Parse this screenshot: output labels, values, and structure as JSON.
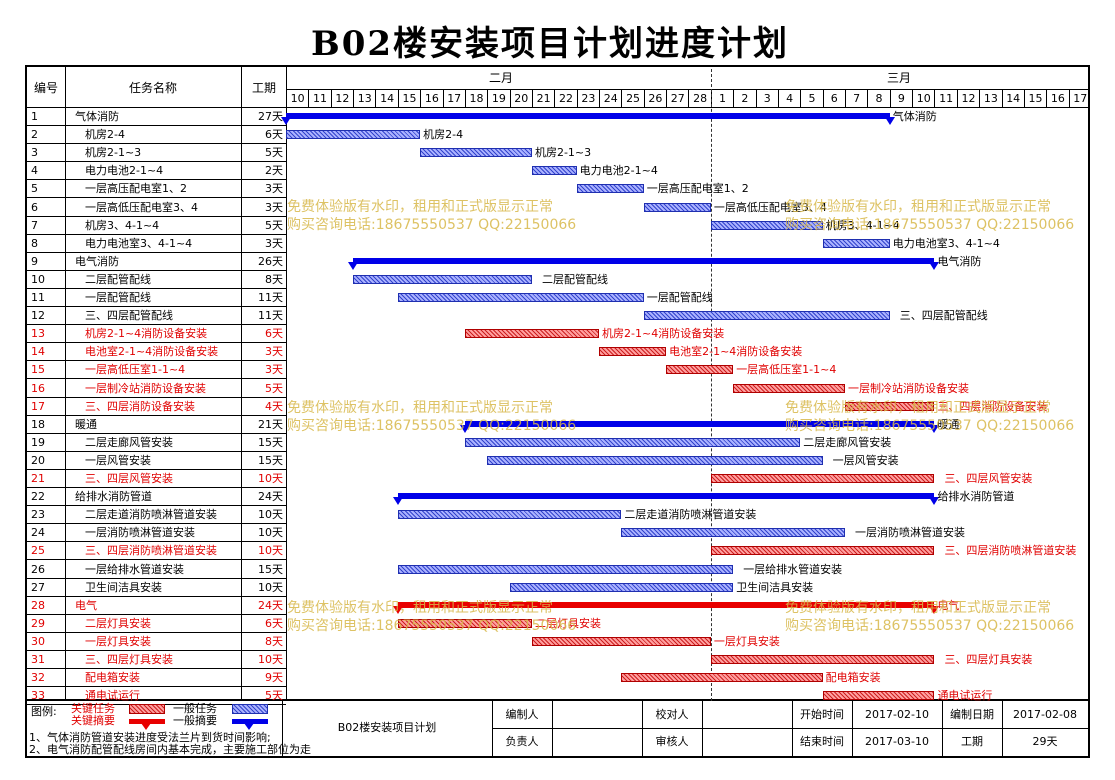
{
  "title": "B02楼安装项目计划进度计划",
  "header": {
    "id": "编号",
    "name": "任务名称",
    "duration": "工期",
    "month1": "二月",
    "month2": "三月"
  },
  "days": [
    "10",
    "11",
    "12",
    "13",
    "14",
    "15",
    "16",
    "17",
    "18",
    "19",
    "20",
    "21",
    "22",
    "23",
    "24",
    "25",
    "26",
    "27",
    "28",
    "1",
    "2",
    "3",
    "4",
    "5",
    "6",
    "7",
    "8",
    "9",
    "10",
    "11",
    "12",
    "13",
    "14",
    "15",
    "16",
    "17"
  ],
  "today_index": 19,
  "tasks": [
    {
      "id": "1",
      "name": "气体消防",
      "dur": "27天",
      "lvl": 0,
      "red": false,
      "kind": "sum",
      "s": 0,
      "d": 27,
      "label": "气体消防"
    },
    {
      "id": "2",
      "name": "机房2-4",
      "dur": "6天",
      "lvl": 1,
      "red": false,
      "kind": "bar",
      "s": 0,
      "d": 6,
      "label": "机房2-4"
    },
    {
      "id": "3",
      "name": "机房2-1~3",
      "dur": "5天",
      "lvl": 1,
      "red": false,
      "kind": "bar",
      "s": 6,
      "d": 5,
      "label": "机房2-1~3"
    },
    {
      "id": "4",
      "name": "电力电池2-1~4",
      "dur": "2天",
      "lvl": 1,
      "red": false,
      "kind": "bar",
      "s": 11,
      "d": 2,
      "label": "电力电池2-1~4"
    },
    {
      "id": "5",
      "name": "一层高压配电室1、2",
      "dur": "3天",
      "lvl": 1,
      "red": false,
      "kind": "bar",
      "s": 13,
      "d": 3,
      "label": "一层高压配电室1、2"
    },
    {
      "id": "6",
      "name": "一层高低压配电室3、4",
      "dur": "3天",
      "lvl": 1,
      "red": false,
      "kind": "bar",
      "s": 16,
      "d": 3,
      "label": "一层高低压配电室3、4"
    },
    {
      "id": "7",
      "name": "机房3、4-1~4",
      "dur": "5天",
      "lvl": 1,
      "red": false,
      "kind": "bar",
      "s": 19,
      "d": 5,
      "label": "机房3、4-1~4"
    },
    {
      "id": "8",
      "name": "电力电池室3、4-1~4",
      "dur": "3天",
      "lvl": 1,
      "red": false,
      "kind": "bar",
      "s": 24,
      "d": 3,
      "label": "电力电池室3、4-1~4"
    },
    {
      "id": "9",
      "name": "电气消防",
      "dur": "26天",
      "lvl": 0,
      "red": false,
      "kind": "sum",
      "s": 3,
      "d": 26,
      "label": "电气消防"
    },
    {
      "id": "10",
      "name": "二层配管配线",
      "dur": "8天",
      "lvl": 1,
      "red": false,
      "kind": "bar",
      "s": 3,
      "d": 8,
      "label": "二层配管配线",
      "gap": true
    },
    {
      "id": "11",
      "name": "一层配管配线",
      "dur": "11天",
      "lvl": 1,
      "red": false,
      "kind": "bar",
      "s": 5,
      "d": 11,
      "label": "一层配管配线"
    },
    {
      "id": "12",
      "name": "三、四层配管配线",
      "dur": "11天",
      "lvl": 1,
      "red": false,
      "kind": "bar",
      "s": 16,
      "d": 11,
      "label": "三、四层配管配线",
      "gap": true
    },
    {
      "id": "13",
      "name": "机房2-1~4消防设备安装",
      "dur": "6天",
      "lvl": 1,
      "red": true,
      "kind": "bar",
      "s": 8,
      "d": 6,
      "label": "机房2-1~4消防设备安装"
    },
    {
      "id": "14",
      "name": "电池室2-1~4消防设备安装",
      "dur": "3天",
      "lvl": 1,
      "red": true,
      "kind": "bar",
      "s": 14,
      "d": 3,
      "label": "电池室2-1~4消防设备安装"
    },
    {
      "id": "15",
      "name": "一层高低压室1-1~4",
      "dur": "3天",
      "lvl": 1,
      "red": true,
      "kind": "bar",
      "s": 17,
      "d": 3,
      "label": "一层高低压室1-1~4"
    },
    {
      "id": "16",
      "name": "一层制冷站消防设备安装",
      "dur": "5天",
      "lvl": 1,
      "red": true,
      "kind": "bar",
      "s": 20,
      "d": 5,
      "label": "一层制冷站消防设备安装"
    },
    {
      "id": "17",
      "name": "三、四层消防设备安装",
      "dur": "4天",
      "lvl": 1,
      "red": true,
      "kind": "bar",
      "s": 25,
      "d": 4,
      "label": "三、四层消防设备安装"
    },
    {
      "id": "18",
      "name": "暖通",
      "dur": "21天",
      "lvl": 0,
      "red": false,
      "kind": "sum",
      "s": 8,
      "d": 21,
      "label": "暖通"
    },
    {
      "id": "19",
      "name": "二层走廊风管安装",
      "dur": "15天",
      "lvl": 1,
      "red": false,
      "kind": "bar",
      "s": 8,
      "d": 15,
      "label": "二层走廊风管安装"
    },
    {
      "id": "20",
      "name": "一层风管安装",
      "dur": "15天",
      "lvl": 1,
      "red": false,
      "kind": "bar",
      "s": 9,
      "d": 15,
      "label": "一层风管安装",
      "gap": true
    },
    {
      "id": "21",
      "name": "三、四层风管安装",
      "dur": "10天",
      "lvl": 1,
      "red": true,
      "kind": "bar",
      "s": 19,
      "d": 10,
      "label": "三、四层风管安装",
      "gap": true
    },
    {
      "id": "22",
      "name": "给排水消防管道",
      "dur": "24天",
      "lvl": 0,
      "red": false,
      "kind": "sum",
      "s": 5,
      "d": 24,
      "label": "给排水消防管道"
    },
    {
      "id": "23",
      "name": "二层走道消防喷淋管道安装",
      "dur": "10天",
      "lvl": 1,
      "red": false,
      "kind": "bar",
      "s": 5,
      "d": 10,
      "label": "二层走道消防喷淋管道安装"
    },
    {
      "id": "24",
      "name": "一层消防喷淋管道安装",
      "dur": "10天",
      "lvl": 1,
      "red": false,
      "kind": "bar",
      "s": 15,
      "d": 10,
      "label": "一层消防喷淋管道安装",
      "gap": true
    },
    {
      "id": "25",
      "name": "三、四层消防喷淋管道安装",
      "dur": "10天",
      "lvl": 1,
      "red": true,
      "kind": "bar",
      "s": 19,
      "d": 10,
      "label": "三、四层消防喷淋管道安装",
      "gap": true
    },
    {
      "id": "26",
      "name": "一层给排水管道安装",
      "dur": "15天",
      "lvl": 1,
      "red": false,
      "kind": "bar",
      "s": 5,
      "d": 15,
      "label": "一层给排水管道安装",
      "gap": true
    },
    {
      "id": "27",
      "name": "卫生间洁具安装",
      "dur": "10天",
      "lvl": 1,
      "red": false,
      "kind": "bar",
      "s": 10,
      "d": 10,
      "label": "卫生间洁具安装"
    },
    {
      "id": "28",
      "name": "电气",
      "dur": "24天",
      "lvl": 0,
      "red": true,
      "kind": "sum",
      "s": 5,
      "d": 24,
      "label": "电气"
    },
    {
      "id": "29",
      "name": "二层灯具安装",
      "dur": "6天",
      "lvl": 1,
      "red": true,
      "kind": "bar",
      "s": 5,
      "d": 6,
      "label": "二层灯具安装"
    },
    {
      "id": "30",
      "name": "一层灯具安装",
      "dur": "8天",
      "lvl": 1,
      "red": true,
      "kind": "bar",
      "s": 11,
      "d": 8,
      "label": "一层灯具安装"
    },
    {
      "id": "31",
      "name": "三、四层灯具安装",
      "dur": "10天",
      "lvl": 1,
      "red": true,
      "kind": "bar",
      "s": 19,
      "d": 10,
      "label": "三、四层灯具安装",
      "gap": true
    },
    {
      "id": "32",
      "name": "配电箱安装",
      "dur": "9天",
      "lvl": 1,
      "red": true,
      "kind": "bar",
      "s": 15,
      "d": 9,
      "label": "配电箱安装"
    },
    {
      "id": "33",
      "name": "通电试运行",
      "dur": "5天",
      "lvl": 1,
      "red": true,
      "kind": "bar",
      "s": 24,
      "d": 5,
      "label": "通电试运行"
    }
  ],
  "watermark": {
    "line1": "免费体验版有水印，租用和正式版显示正常",
    "line2": "购买咨询电话:18675550537 QQ:22150066"
  },
  "footer": {
    "legend_label": "图例:",
    "key_task": "关键任务",
    "key_summary": "关键摘要",
    "normal_task": "一般任务",
    "normal_summary": "一般摘要",
    "note1": "1、气体消防管道安装进度受法兰片到货时间影响;",
    "note2": "2、电气消防配管配线房间内基本完成，主要施工部位为走",
    "project_name": "B02楼安装项目计划",
    "editor_label": "编制人",
    "checker_label": "校对人",
    "owner_label": "负责人",
    "reviewer_label": "审核人",
    "start_label": "开始时间",
    "start_value": "2017-02-10",
    "end_label": "结束时间",
    "end_value": "2017-03-10",
    "made_label": "编制日期",
    "made_value": "2017-02-08",
    "period_label": "工期",
    "period_value": "29天"
  }
}
